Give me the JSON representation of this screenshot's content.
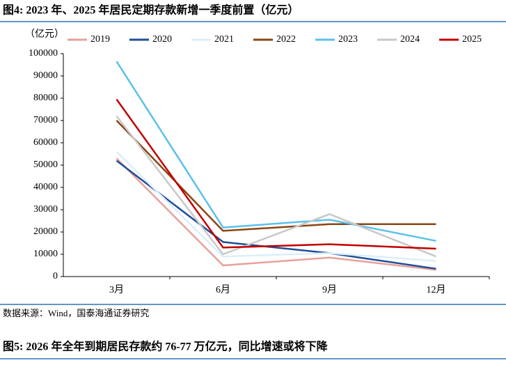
{
  "chart_data": {
    "type": "line",
    "title": "图4:  2023 年、2025 年居民定期存款新增一季度前置（亿元）",
    "y_unit": "（亿元）",
    "categories": [
      "3月",
      "6月",
      "9月",
      "12月"
    ],
    "series": [
      {
        "name": "2019",
        "color": "#e8a09a",
        "values": [
          53000,
          5000,
          8500,
          3000
        ]
      },
      {
        "name": "2020",
        "color": "#1f4e9a",
        "values": [
          52000,
          15500,
          10500,
          3500
        ]
      },
      {
        "name": "2021",
        "color": "#dceef8",
        "values": [
          56000,
          9000,
          10500,
          7000
        ]
      },
      {
        "name": "2022",
        "color": "#8b4513",
        "values": [
          70000,
          20500,
          23500,
          23500
        ]
      },
      {
        "name": "2023",
        "color": "#5bc0eb",
        "values": [
          96500,
          22000,
          25500,
          16000
        ]
      },
      {
        "name": "2024",
        "color": "#c8c8c8",
        "values": [
          72000,
          10000,
          28000,
          9000
        ]
      },
      {
        "name": "2025",
        "color": "#c00000",
        "values": [
          79500,
          13000,
          14500,
          12500
        ]
      }
    ],
    "ylim": [
      0,
      100000
    ],
    "yticks": [
      0,
      10000,
      20000,
      30000,
      40000,
      50000,
      60000,
      70000,
      80000,
      90000,
      100000
    ],
    "legend": "top"
  },
  "footer": {
    "source": "数据来源：Wind，国泰海通证券研究",
    "next_title": "图5:  2026 年全年到期居民存款约 76-77 万亿元，同比增速或将下降"
  }
}
